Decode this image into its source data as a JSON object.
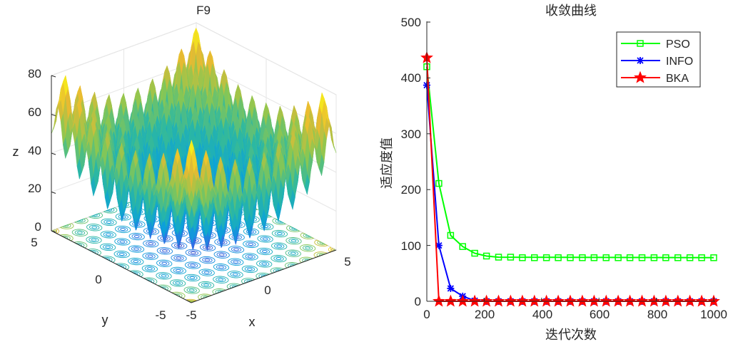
{
  "chart_data": [
    {
      "type": "surface",
      "title": "F9",
      "xlabel": "x",
      "ylabel": "y",
      "zlabel": "z",
      "xlim": [
        -5,
        5
      ],
      "ylim": [
        -5,
        5
      ],
      "zlim": [
        0,
        80
      ],
      "x_ticks": [
        "-5",
        "0",
        "5"
      ],
      "y_ticks": [
        "-5",
        "0",
        "5"
      ],
      "z_ticks": [
        "0",
        "20",
        "40",
        "60",
        "80"
      ],
      "grid": true,
      "function": "Rastrigin",
      "colormap": [
        "#3e26a8",
        "#2f6fe6",
        "#0ba2d8",
        "#2cb8a2",
        "#8ac752",
        "#e9ba31",
        "#f9fb15"
      ]
    },
    {
      "type": "line",
      "title": "收敛曲线",
      "xlabel": "迭代次数",
      "ylabel": "适应度值",
      "xlim": [
        0,
        1000
      ],
      "ylim": [
        0,
        500
      ],
      "x_ticks": [
        "0",
        "200",
        "400",
        "600",
        "800",
        "1000"
      ],
      "y_ticks": [
        "0",
        "100",
        "200",
        "300",
        "400",
        "500"
      ],
      "legend_position": "top-right",
      "series": [
        {
          "name": "PSO",
          "color": "#00ff00",
          "marker": "square",
          "line_x": [
            0,
            42,
            83,
            125,
            167,
            208,
            250,
            1000
          ],
          "line_y": [
            420,
            211,
            118,
            98,
            86,
            81,
            79,
            78
          ],
          "marker_x": [
            0,
            42,
            83,
            125,
            167,
            208,
            250,
            292,
            333,
            375,
            417,
            458,
            500,
            542,
            583,
            625,
            667,
            708,
            750,
            792,
            833,
            875,
            917,
            958,
            1000
          ],
          "marker_y": [
            420,
            211,
            118,
            98,
            86,
            81,
            79,
            79,
            78,
            78,
            78,
            78,
            78,
            78,
            78,
            78,
            78,
            78,
            78,
            78,
            78,
            78,
            78,
            78,
            78
          ]
        },
        {
          "name": "INFO",
          "color": "#0000ff",
          "marker": "asterisk",
          "line_x": [
            0,
            42,
            83,
            125,
            167,
            208,
            1000
          ],
          "line_y": [
            387,
            100,
            23,
            9,
            1,
            0,
            0
          ],
          "marker_x": [
            0,
            42,
            83,
            125,
            167,
            208,
            250,
            292,
            333,
            375,
            417,
            458,
            500,
            542,
            583,
            625,
            667,
            708,
            750,
            792,
            833,
            875,
            917,
            958,
            1000
          ],
          "marker_y": [
            387,
            100,
            23,
            9,
            1,
            0,
            0,
            0,
            0,
            0,
            0,
            0,
            0,
            0,
            0,
            0,
            0,
            0,
            0,
            0,
            0,
            0,
            0,
            0,
            0
          ]
        },
        {
          "name": "BKA",
          "color": "#ff0000",
          "marker": "pentagram",
          "line_x": [
            0,
            42,
            1000
          ],
          "line_y": [
            436,
            0,
            0
          ],
          "marker_x": [
            0,
            42,
            83,
            125,
            167,
            208,
            250,
            292,
            333,
            375,
            417,
            458,
            500,
            542,
            583,
            625,
            667,
            708,
            750,
            792,
            833,
            875,
            917,
            958,
            1000
          ],
          "marker_y": [
            436,
            0,
            0,
            0,
            0,
            0,
            0,
            0,
            0,
            0,
            0,
            0,
            0,
            0,
            0,
            0,
            0,
            0,
            0,
            0,
            0,
            0,
            0,
            0,
            0
          ]
        }
      ]
    }
  ]
}
